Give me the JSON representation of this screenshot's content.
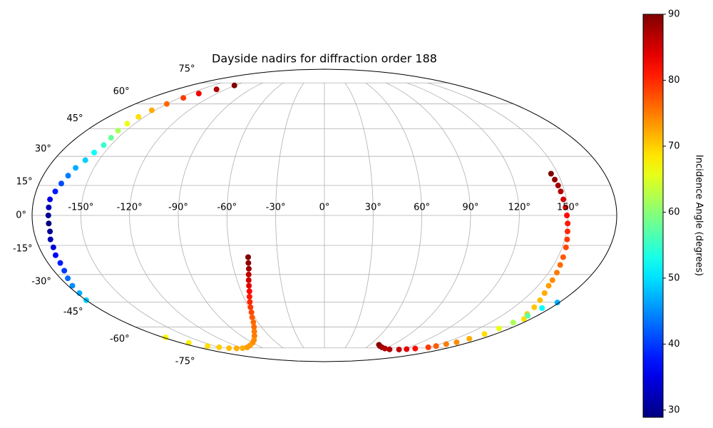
{
  "chart_data": {
    "type": "scatter",
    "projection": "mollweide",
    "title": "Dayside nadirs for diffraction order 188",
    "grid": true,
    "xlim": [
      -180,
      180
    ],
    "ylim": [
      -90,
      90
    ],
    "xticks": [
      {
        "value": -150,
        "label": "-150°"
      },
      {
        "value": -120,
        "label": "-120°"
      },
      {
        "value": -90,
        "label": "-90°"
      },
      {
        "value": -60,
        "label": "-60°"
      },
      {
        "value": -30,
        "label": "-30°"
      },
      {
        "value": 0,
        "label": "0°"
      },
      {
        "value": 30,
        "label": "30°"
      },
      {
        "value": 60,
        "label": "60°"
      },
      {
        "value": 90,
        "label": "90°"
      },
      {
        "value": 120,
        "label": "120°"
      },
      {
        "value": 150,
        "label": "150°"
      }
    ],
    "yticks": [
      {
        "value": -75,
        "label": "-75°"
      },
      {
        "value": -60,
        "label": "-60°"
      },
      {
        "value": -45,
        "label": "-45°"
      },
      {
        "value": -30,
        "label": "-30°"
      },
      {
        "value": -15,
        "label": "-15°"
      },
      {
        "value": 0,
        "label": "0°"
      },
      {
        "value": 15,
        "label": "15°"
      },
      {
        "value": 30,
        "label": "30°"
      },
      {
        "value": 45,
        "label": "45°"
      },
      {
        "value": 60,
        "label": "60°"
      },
      {
        "value": 75,
        "label": "75°"
      }
    ],
    "colorbar": {
      "label": "Incidence Angle (degrees)",
      "colormap": "jet",
      "clim": [
        28.9,
        90
      ],
      "ticks": [
        30,
        40,
        50,
        60,
        70,
        80,
        90
      ]
    },
    "series": [
      {
        "x": [
          -121,
          -131,
          -140,
          -146,
          -150,
          -153,
          -155,
          -156,
          -156,
          -155,
          -155,
          -157,
          -159,
          -162,
          -164,
          -166,
          -168,
          -170,
          -170,
          -170,
          -170,
          -170,
          -171,
          -171,
          -172,
          -172,
          -173,
          -175,
          -177,
          -178,
          -180
        ],
        "y": [
          73,
          70,
          67,
          64,
          60,
          56,
          52,
          48,
          44,
          40,
          36,
          32,
          28,
          24,
          20,
          16,
          12,
          8,
          4,
          0,
          -4,
          -8,
          -12,
          -16,
          -20,
          -24,
          -28,
          -32,
          -36,
          -40,
          -44
        ],
        "values": [
          90,
          87,
          83,
          79,
          76,
          72,
          69,
          66,
          62,
          58,
          55,
          52,
          49,
          47,
          44,
          41,
          38,
          35,
          32,
          30,
          29,
          30,
          32,
          34,
          36,
          38,
          40,
          43,
          45,
          47,
          49
        ]
      },
      {
        "x": [
          -49,
          -49.5,
          -50,
          -51,
          -52,
          -53,
          -54,
          -55.5,
          -57,
          -58.5,
          -60,
          -62,
          -64,
          -67,
          -71,
          -76,
          -83,
          -90,
          -100,
          -110,
          -120,
          -130,
          -140,
          -150,
          -160,
          -170,
          -177
        ],
        "y": [
          -21,
          -24,
          -27,
          -30,
          -33,
          -36,
          -39,
          -42,
          -45,
          -48,
          -51,
          -54,
          -57,
          -60,
          -63,
          -66,
          -69,
          -71,
          -73,
          -74.5,
          -75.2,
          -75.4,
          -75.2,
          -74.5,
          -73.5,
          -71,
          -67
        ],
        "values": [
          90,
          89,
          88,
          86,
          85,
          84,
          82,
          81,
          80,
          79,
          78,
          77,
          76,
          76,
          75,
          75,
          74,
          74,
          73,
          73,
          72,
          72,
          71,
          70,
          69,
          68,
          67
        ]
      },
      {
        "x": [
          145.6,
          146.3,
          147,
          147.5,
          148,
          148.7,
          149.3,
          150,
          150.6,
          151.5,
          152.4,
          153.4,
          154.3,
          155.5,
          156.6,
          157.5,
          160,
          163,
          166,
          169,
          174
        ],
        "y": [
          21,
          18,
          15,
          12,
          8,
          4,
          0,
          -4,
          -8,
          -12,
          -16,
          -21,
          -25,
          -29,
          -33,
          -36,
          -40,
          -44,
          -48,
          -52,
          -55
        ],
        "values": [
          90,
          89,
          88,
          87,
          85,
          84,
          82,
          81,
          80,
          79,
          78,
          77,
          76,
          75,
          74,
          73,
          72,
          71,
          70.5,
          70,
          69
        ]
      },
      {
        "x": [
          72,
          76,
          82,
          90,
          100,
          115,
          125,
          135,
          148,
          153,
          158,
          163.6,
          166,
          168.4,
          169.5,
          170.7,
          172,
          173.2,
          178.6
        ],
        "y": [
          -72.5,
          -73.5,
          -74.5,
          -75.5,
          -76.2,
          -76.3,
          -76,
          -75.5,
          -74.5,
          -73.5,
          -72,
          -70.6,
          -68,
          -64.7,
          -61,
          -57.2,
          -53,
          -48.5,
          -45.3
        ],
        "values": [
          90,
          89,
          88,
          87,
          87,
          86,
          84,
          82,
          79,
          77,
          75,
          74,
          72,
          69,
          66,
          62,
          57,
          52,
          47
        ]
      }
    ]
  }
}
